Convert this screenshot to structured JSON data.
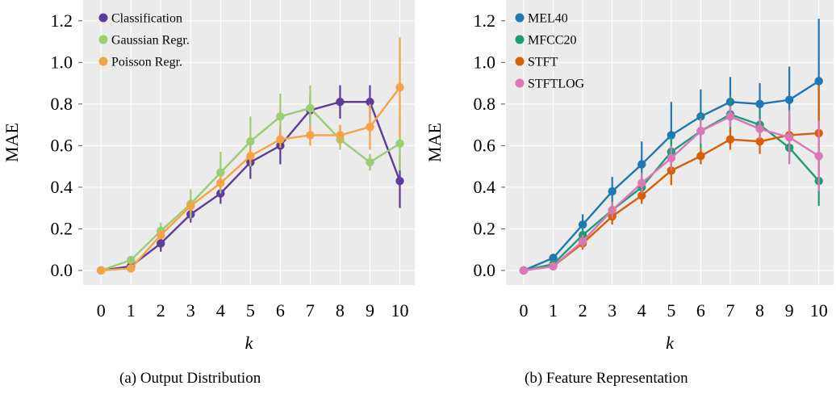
{
  "chart_data": [
    {
      "type": "line",
      "caption": "(a) Output Distribution",
      "xlabel": "k",
      "ylabel": "MAE",
      "x": [
        0,
        1,
        2,
        3,
        4,
        5,
        6,
        7,
        8,
        9,
        10
      ],
      "xticks": [
        "0",
        "1",
        "2",
        "3",
        "4",
        "5",
        "6",
        "7",
        "8",
        "9",
        "10"
      ],
      "yticks": [
        "0.0",
        "0.2",
        "0.4",
        "0.6",
        "0.8",
        "1.0",
        "1.2"
      ],
      "xlim": [
        -0.6,
        10.5
      ],
      "ylim": [
        -0.07,
        1.3
      ],
      "grid": true,
      "legend_position": "top-left",
      "series": [
        {
          "name": "Classification",
          "color": "#5e3c99",
          "values": [
            0.0,
            0.02,
            0.13,
            0.27,
            0.37,
            0.52,
            0.6,
            0.77,
            0.81,
            0.81,
            0.43
          ],
          "errors": [
            0.0,
            0.01,
            0.04,
            0.04,
            0.05,
            0.08,
            0.09,
            0.07,
            0.08,
            0.08,
            0.13
          ]
        },
        {
          "name": "Gaussian Regr.",
          "color": "#9ccc74",
          "values": [
            0.0,
            0.05,
            0.19,
            0.32,
            0.47,
            0.62,
            0.74,
            0.78,
            0.63,
            0.52,
            0.61
          ],
          "errors": [
            0.0,
            0.01,
            0.04,
            0.07,
            0.1,
            0.12,
            0.11,
            0.11,
            0.05,
            0.04,
            0.13
          ]
        },
        {
          "name": "Poisson Regr.",
          "color": "#f5a345",
          "values": [
            0.0,
            0.01,
            0.17,
            0.31,
            0.42,
            0.55,
            0.63,
            0.65,
            0.65,
            0.69,
            0.88
          ],
          "errors": [
            0.0,
            0.01,
            0.02,
            0.03,
            0.03,
            0.04,
            0.04,
            0.05,
            0.05,
            0.11,
            0.24
          ]
        }
      ]
    },
    {
      "type": "line",
      "caption": "(b) Feature Representation",
      "xlabel": "k",
      "ylabel": "MAE",
      "x": [
        0,
        1,
        2,
        3,
        4,
        5,
        6,
        7,
        8,
        9,
        10
      ],
      "xticks": [
        "0",
        "1",
        "2",
        "3",
        "4",
        "5",
        "6",
        "7",
        "8",
        "9",
        "10"
      ],
      "yticks": [
        "0.0",
        "0.2",
        "0.4",
        "0.6",
        "0.8",
        "1.0",
        "1.2"
      ],
      "xlim": [
        -0.6,
        10.5
      ],
      "ylim": [
        -0.07,
        1.3
      ],
      "grid": true,
      "legend_position": "top-left",
      "series": [
        {
          "name": "MEL40",
          "color": "#1f77b4",
          "values": [
            0.0,
            0.06,
            0.22,
            0.38,
            0.51,
            0.65,
            0.74,
            0.81,
            0.8,
            0.82,
            0.91
          ],
          "errors": [
            0.0,
            0.02,
            0.05,
            0.07,
            0.11,
            0.16,
            0.13,
            0.12,
            0.1,
            0.16,
            0.3
          ]
        },
        {
          "name": "MFCC20",
          "color": "#1b9e77",
          "values": [
            0.0,
            0.03,
            0.17,
            0.29,
            0.4,
            0.57,
            0.67,
            0.75,
            0.7,
            0.59,
            0.43
          ],
          "errors": [
            0.0,
            0.01,
            0.04,
            0.05,
            0.07,
            0.07,
            0.08,
            0.09,
            0.07,
            0.07,
            0.12
          ]
        },
        {
          "name": "STFT",
          "color": "#d95f02",
          "values": [
            0.0,
            0.02,
            0.13,
            0.26,
            0.36,
            0.48,
            0.55,
            0.63,
            0.62,
            0.65,
            0.66
          ],
          "errors": [
            0.0,
            0.01,
            0.03,
            0.04,
            0.04,
            0.07,
            0.04,
            0.05,
            0.06,
            0.1,
            0.23
          ]
        },
        {
          "name": "STFTLOG",
          "color": "#d978b4",
          "values": [
            0.0,
            0.02,
            0.14,
            0.29,
            0.42,
            0.54,
            0.67,
            0.74,
            0.68,
            0.64,
            0.55
          ],
          "errors": [
            0.0,
            0.01,
            0.03,
            0.04,
            0.05,
            0.06,
            0.06,
            0.05,
            0.05,
            0.13,
            0.17
          ]
        }
      ]
    }
  ]
}
